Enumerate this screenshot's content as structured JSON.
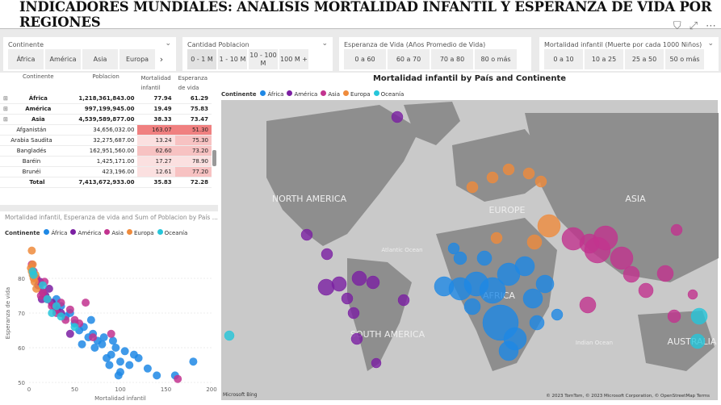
{
  "title": "INDICADORES MUNDIALES: ANALISIS MORTALIDAD INFANTIL Y ESPERANZA DE VIDA POR REGIONES",
  "top_icons": [
    "filter-icon",
    "focus-icon",
    "more-icon"
  ],
  "slicers": {
    "continente": {
      "label": "Continente",
      "chips": [
        "África",
        "América",
        "Asia",
        "Europa"
      ]
    },
    "poblacion": {
      "label": "Cantidad Poblacion",
      "chips": [
        "0 - 1 M",
        "1 - 10 M",
        "10 - 100 M",
        "100 M +"
      ]
    },
    "esperanza": {
      "label": "Esperanza de Vida (Años Promedio de Vida)",
      "chips": [
        "0 a 60",
        "60 a 70",
        "70 a 80",
        "80 o más"
      ]
    },
    "mortalidad": {
      "label": "Mortalidad infantil (Muerte por cada 1000 Niños)",
      "chips": [
        "0 a 10",
        "10 a 25",
        "25 a 50",
        "50 o más"
      ]
    }
  },
  "table": {
    "headers": [
      "Continente",
      "Poblacion",
      "Mortalidad infantil",
      "Esperanza de vida"
    ],
    "rows": [
      {
        "name": "África",
        "pob": "1,218,361,843.00",
        "mort": "77.94",
        "esp": "61.29",
        "type": "cont"
      },
      {
        "name": "América",
        "pob": "997,199,945.00",
        "mort": "19.49",
        "esp": "75.83",
        "type": "cont"
      },
      {
        "name": "Asia",
        "pob": "4,539,589,877.00",
        "mort": "38.33",
        "esp": "73.47",
        "type": "cont"
      },
      {
        "name": "Afganistán",
        "pob": "34,656,032.00",
        "mort": "163.07",
        "esp": "51.30",
        "type": "row"
      },
      {
        "name": "Arabia Saudita",
        "pob": "32,275,687.00",
        "mort": "13.24",
        "esp": "75.30",
        "type": "row"
      },
      {
        "name": "Bangladés",
        "pob": "162,951,560.00",
        "mort": "62.60",
        "esp": "73.20",
        "type": "row"
      },
      {
        "name": "Baréin",
        "pob": "1,425,171.00",
        "mort": "17.27",
        "esp": "78.90",
        "type": "row"
      },
      {
        "name": "Brunéi",
        "pob": "423,196.00",
        "mort": "12.61",
        "esp": "77.20",
        "type": "row"
      }
    ],
    "total": {
      "name": "Total",
      "pob": "7,413,672,933.00",
      "mort": "35.83",
      "esp": "72.28"
    }
  },
  "scatter": {
    "title": "Mortalidad infantil, Esperanza de vida and Sum of Poblacion by País ...",
    "legend_label": "Continente",
    "xlabel": "Mortalidad infantil",
    "ylabel": "Esperanza de vida"
  },
  "map": {
    "title": "Mortalidad infantil by País and Continente",
    "legend_label": "Continente",
    "labels": [
      "NORTH AMERICA",
      "SOUTH AMERICA",
      "EUROPE",
      "ASIA",
      "AFRICA",
      "AUSTRALIA",
      "Atlantic Ocean",
      "Indian Ocean"
    ],
    "bing": "Microsoft Bing",
    "copyright": "© 2023 TomTom, © 2023 Microsoft Corporation, © OpenStreetMap  Terms"
  },
  "legend": [
    {
      "name": "África",
      "color": "#1e88e5"
    },
    {
      "name": "América",
      "color": "#7b1fa2"
    },
    {
      "name": "Asia",
      "color": "#c2338f"
    },
    {
      "name": "Europa",
      "color": "#ef8b3c"
    },
    {
      "name": "Oceanía",
      "color": "#26c6da"
    }
  ],
  "chart_data": [
    {
      "type": "scatter",
      "title": "Mortalidad infantil, Esperanza de vida and Sum of Poblacion by País ...",
      "xlabel": "Mortalidad infantil",
      "ylabel": "Esperanza de vida",
      "xlim": [
        0,
        200
      ],
      "ylim": [
        50,
        90
      ],
      "xticks": [
        0,
        50,
        100,
        150,
        200
      ],
      "yticks": [
        50,
        60,
        70,
        80
      ],
      "series": [
        {
          "name": "África",
          "points": [
            [
              60,
              66
            ],
            [
              70,
              64
            ],
            [
              80,
              61
            ],
            [
              90,
              58
            ],
            [
              100,
              56
            ],
            [
              110,
              55
            ],
            [
              95,
              60
            ],
            [
              85,
              57
            ],
            [
              75,
              62
            ],
            [
              65,
              63
            ],
            [
              55,
              65
            ],
            [
              100,
              53
            ],
            [
              120,
              57
            ],
            [
              130,
              54
            ],
            [
              140,
              52
            ],
            [
              105,
              59
            ],
            [
              88,
              55
            ],
            [
              72,
              60
            ],
            [
              50,
              67
            ],
            [
              45,
              70
            ],
            [
              115,
              58
            ],
            [
              98,
              52
            ],
            [
              160,
              52
            ],
            [
              180,
              56
            ],
            [
              82,
              63
            ],
            [
              68,
              68
            ],
            [
              30,
              74
            ],
            [
              35,
              72
            ],
            [
              40,
              69
            ],
            [
              92,
              62
            ],
            [
              58,
              61
            ]
          ]
        },
        {
          "name": "América",
          "points": [
            [
              10,
              78
            ],
            [
              15,
              76
            ],
            [
              20,
              74
            ],
            [
              25,
              73
            ],
            [
              18,
              75
            ],
            [
              12,
              79
            ],
            [
              30,
              71
            ],
            [
              22,
              77
            ],
            [
              8,
              80
            ],
            [
              35,
              70
            ],
            [
              28,
              72
            ],
            [
              14,
              74
            ],
            [
              45,
              64
            ]
          ]
        },
        {
          "name": "Asia",
          "points": [
            [
              5,
              82
            ],
            [
              8,
              80
            ],
            [
              12,
              78
            ],
            [
              15,
              76
            ],
            [
              20,
              74
            ],
            [
              25,
              72
            ],
            [
              30,
              70
            ],
            [
              40,
              68
            ],
            [
              50,
              68
            ],
            [
              62,
              73
            ],
            [
              163,
              51
            ],
            [
              55,
              67
            ],
            [
              70,
              63
            ],
            [
              90,
              64
            ],
            [
              17,
              79
            ],
            [
              13,
              75
            ],
            [
              3,
              84
            ],
            [
              45,
              71
            ],
            [
              35,
              73
            ]
          ]
        },
        {
          "name": "Europa",
          "points": [
            [
              3,
              82
            ],
            [
              4,
              81
            ],
            [
              5,
              80
            ],
            [
              2,
              83
            ],
            [
              6,
              79
            ],
            [
              4,
              84
            ],
            [
              8,
              77
            ],
            [
              3,
              88
            ],
            [
              7,
              81
            ]
          ]
        },
        {
          "name": "Oceanía",
          "points": [
            [
              4,
              82
            ],
            [
              5,
              81
            ],
            [
              20,
              74
            ],
            [
              25,
              70
            ],
            [
              35,
              69
            ],
            [
              50,
              66
            ],
            [
              30,
              72
            ],
            [
              15,
              78
            ]
          ]
        }
      ]
    }
  ]
}
